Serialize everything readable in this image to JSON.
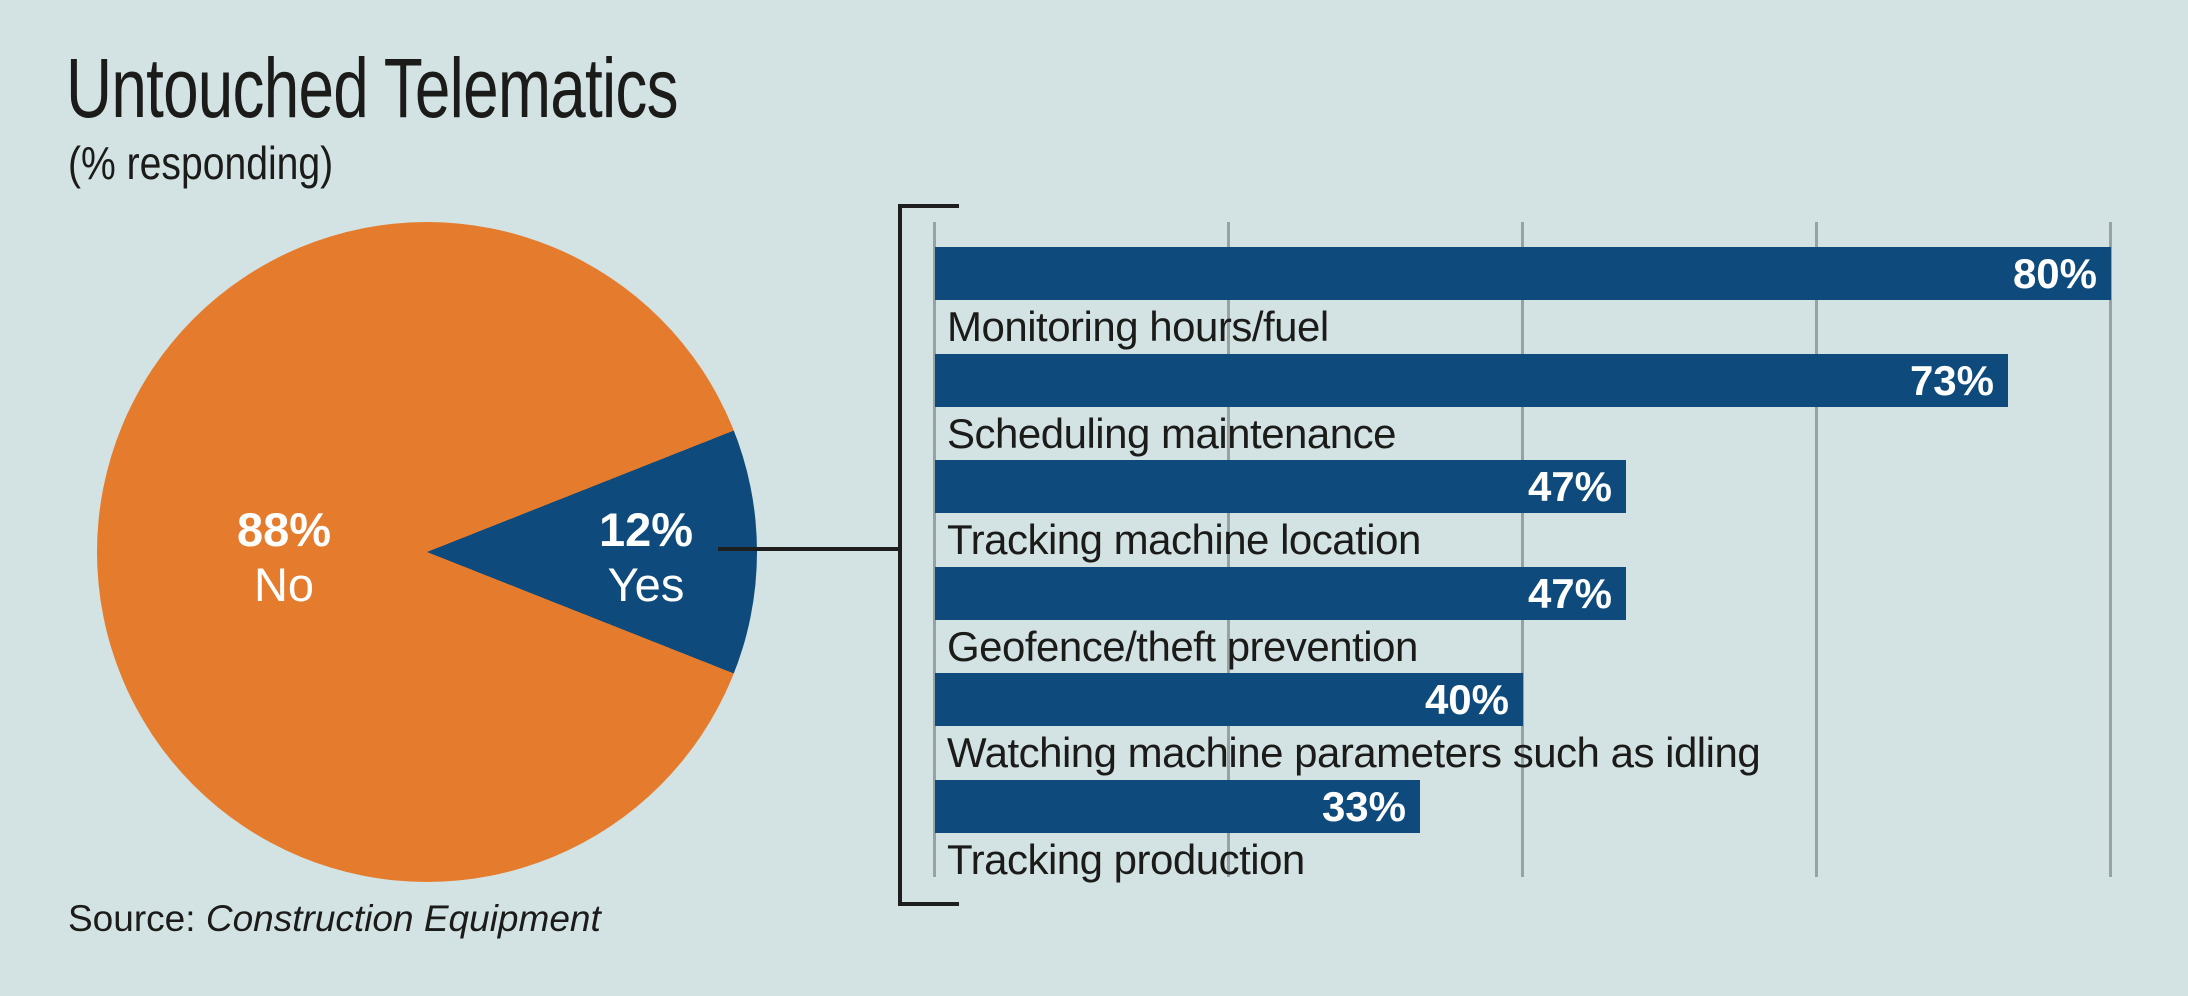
{
  "header": {
    "title": "Untouched Telematics",
    "subtitle": "(% responding)"
  },
  "source": {
    "prefix": "Source:",
    "publication": "Construction Equipment"
  },
  "colors": {
    "background": "#d3e3e4",
    "orange": "#e57c2d",
    "blue": "#0e4b7c",
    "gridline": "#98a2a2",
    "line": "#1e1e1e",
    "text": "#1b1b19",
    "bar_value_text": "#ffffff"
  },
  "chart_data": [
    {
      "type": "pie",
      "labels": [
        "No",
        "Yes"
      ],
      "values": [
        88,
        12
      ],
      "value_suffix": "%",
      "colors": [
        "#e57c2d",
        "#0e4b7c"
      ],
      "slice_label_style": "value over label, white, inside slice",
      "yes_wedge_direction": "pointing left with apex at center, opening right"
    },
    {
      "type": "bar",
      "orientation": "horizontal",
      "categories": [
        "Monitoring hours/fuel",
        "Scheduling maintenance",
        "Tracking machine location",
        "Geofence/theft prevention",
        "Watching machine parameters such as idling",
        "Tracking production"
      ],
      "values": [
        80,
        73,
        47,
        47,
        40,
        33
      ],
      "value_suffix": "%",
      "bar_color": "#0e4b7c",
      "value_label_position": "inside-right",
      "category_label_position": "below-bar",
      "xlim": [
        0,
        85
      ],
      "gridlines_pct": [
        0,
        20,
        40,
        60,
        80
      ],
      "grid": "on",
      "legend": "none"
    }
  ]
}
